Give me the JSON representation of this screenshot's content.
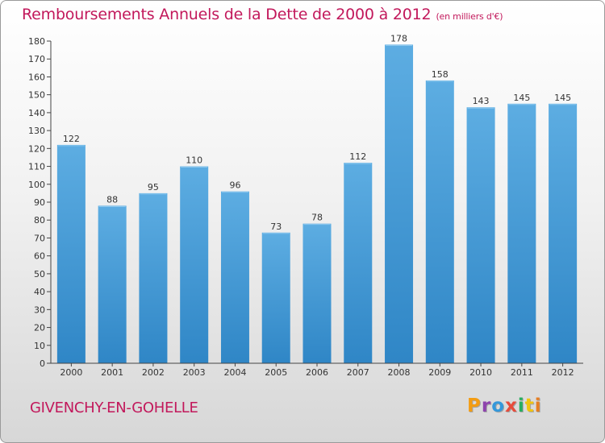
{
  "header": {
    "title": "Remboursements Annuels de la Dette de 2000 à 2012",
    "subtitle": "(en milliers d'€)"
  },
  "footer": {
    "commune": "GIVENCHY-EN-GOHELLE",
    "logo_text": "Proxiti",
    "logo_colors": [
      "#f39c12",
      "#8e44ad",
      "#3498db",
      "#e74c3c",
      "#27ae60",
      "#f1c40f",
      "#e67e22"
    ]
  },
  "colors": {
    "bar_light": "#5dade2",
    "bar_dark": "#2f86c6",
    "title": "#c2185b"
  },
  "chart_data": {
    "type": "bar",
    "title": "Remboursements Annuels de la Dette de 2000 à 2012",
    "subtitle": "(en milliers d'€)",
    "categories": [
      "2000",
      "2001",
      "2002",
      "2003",
      "2004",
      "2005",
      "2006",
      "2007",
      "2008",
      "2009",
      "2010",
      "2011",
      "2012"
    ],
    "values": [
      122,
      88,
      95,
      110,
      96,
      73,
      78,
      112,
      178,
      158,
      143,
      145,
      145
    ],
    "ylim": [
      0,
      180
    ],
    "yticks": [
      0,
      10,
      20,
      30,
      40,
      50,
      60,
      70,
      80,
      90,
      100,
      110,
      120,
      130,
      140,
      150,
      160,
      170,
      180
    ],
    "grid": false,
    "legend": "none"
  }
}
